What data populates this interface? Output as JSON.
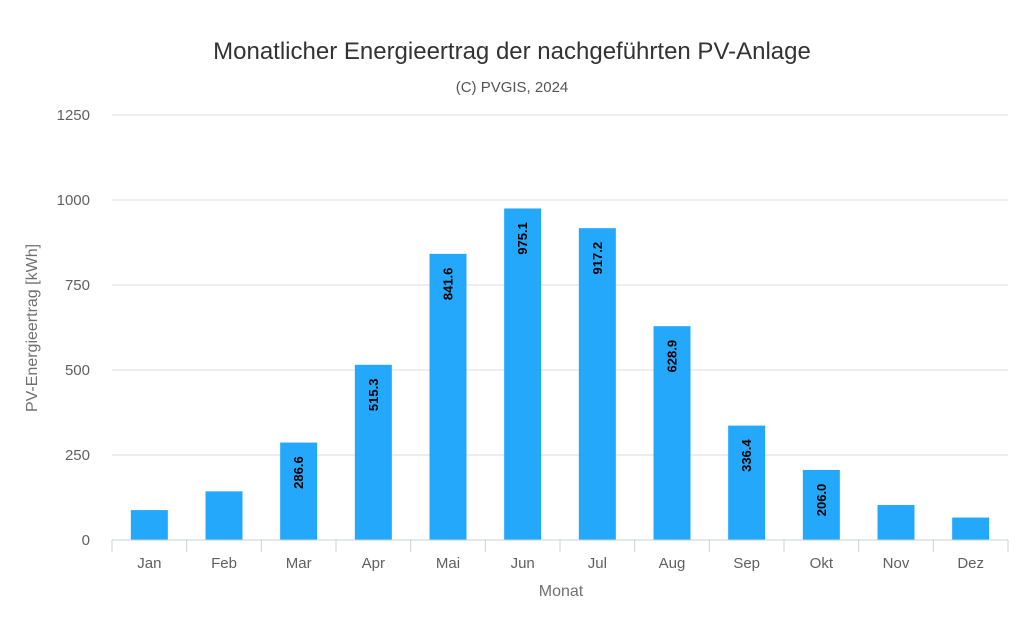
{
  "chart_data": {
    "type": "bar",
    "title": "Monatlicher Energieertrag der nachgeführten PV-Anlage",
    "subtitle": "(C) PVGIS, 2024",
    "xlabel": "Monat",
    "ylabel": "PV-Energieertrag [kWh]",
    "categories": [
      "Jan",
      "Feb",
      "Mar",
      "Apr",
      "Mai",
      "Jun",
      "Jul",
      "Aug",
      "Sep",
      "Okt",
      "Nov",
      "Dez"
    ],
    "values": [
      88,
      143,
      286.6,
      515.3,
      841.6,
      975.1,
      917.2,
      628.9,
      336.4,
      206.0,
      103,
      66
    ],
    "data_labels": [
      null,
      null,
      "286.6",
      "515.3",
      "841.6",
      "975.1",
      "917.2",
      "628.9",
      "336.4",
      "206.0",
      null,
      null
    ],
    "ylim": [
      0,
      1250
    ],
    "yticks": [
      0,
      250,
      500,
      750,
      1000,
      1250
    ],
    "grid": true,
    "bar_color": "#24a8fb",
    "gridline_color": "#d8dde3"
  }
}
